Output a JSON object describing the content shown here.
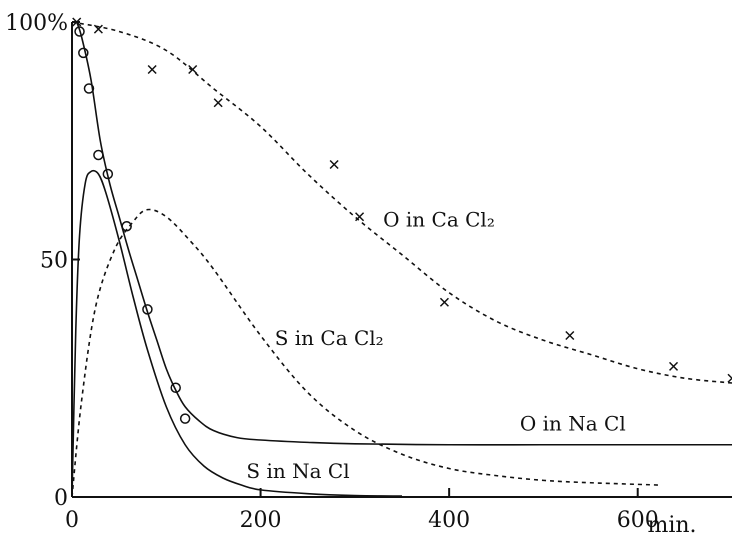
{
  "chart_data": {
    "type": "line",
    "x_unit_label": "min.",
    "y_max_label": "100%",
    "xlim": [
      0,
      700
    ],
    "ylim": [
      0,
      100
    ],
    "x_ticks": [
      0,
      200,
      400,
      600
    ],
    "x_tick_labels": [
      "0",
      "200",
      "400",
      "600"
    ],
    "y_ticks": [
      0,
      50,
      100
    ],
    "y_tick_labels": [
      "0",
      "50",
      "100%"
    ],
    "grid": false,
    "series": [
      {
        "name": "O in Ca Cl₂",
        "style": "dashed",
        "marker": "x",
        "curve": [
          [
            0,
            100
          ],
          [
            50,
            98
          ],
          [
            100,
            94
          ],
          [
            150,
            86
          ],
          [
            200,
            78
          ],
          [
            250,
            68
          ],
          [
            300,
            59
          ],
          [
            350,
            51
          ],
          [
            400,
            43
          ],
          [
            450,
            37
          ],
          [
            500,
            33
          ],
          [
            550,
            30
          ],
          [
            600,
            27
          ],
          [
            650,
            25
          ],
          [
            700,
            24
          ]
        ],
        "points": [
          [
            5,
            100
          ],
          [
            28,
            98.5
          ],
          [
            85,
            90
          ],
          [
            128,
            90
          ],
          [
            155,
            83
          ],
          [
            278,
            70
          ],
          [
            305,
            59
          ],
          [
            395,
            41
          ],
          [
            528,
            34
          ],
          [
            638,
            27.5
          ],
          [
            700,
            25
          ]
        ]
      },
      {
        "name": "S in Ca Cl₂",
        "style": "dashed",
        "marker": "none",
        "curve": [
          [
            0,
            0
          ],
          [
            10,
            20
          ],
          [
            25,
            40
          ],
          [
            45,
            52
          ],
          [
            65,
            58
          ],
          [
            80,
            60.5
          ],
          [
            100,
            59
          ],
          [
            125,
            54
          ],
          [
            150,
            48
          ],
          [
            200,
            34
          ],
          [
            250,
            22
          ],
          [
            300,
            14
          ],
          [
            350,
            9
          ],
          [
            400,
            6
          ],
          [
            450,
            4.5
          ],
          [
            500,
            3.5
          ],
          [
            550,
            3
          ],
          [
            625,
            2.5
          ]
        ]
      },
      {
        "name": "O in Na Cl",
        "style": "solid",
        "marker": "o",
        "curve": [
          [
            5,
            100
          ],
          [
            10,
            97
          ],
          [
            20,
            88
          ],
          [
            30,
            75
          ],
          [
            40,
            66
          ],
          [
            50,
            59
          ],
          [
            60,
            52
          ],
          [
            70,
            45.5
          ],
          [
            80,
            39
          ],
          [
            90,
            33
          ],
          [
            100,
            27
          ],
          [
            110,
            22.5
          ],
          [
            120,
            19
          ],
          [
            135,
            16
          ],
          [
            150,
            14
          ],
          [
            175,
            12.5
          ],
          [
            200,
            12
          ],
          [
            250,
            11.5
          ],
          [
            300,
            11.2
          ],
          [
            400,
            11
          ],
          [
            500,
            11
          ],
          [
            600,
            11
          ],
          [
            700,
            11
          ]
        ],
        "points": [
          [
            8,
            98
          ],
          [
            12,
            93.5
          ],
          [
            18,
            86
          ],
          [
            28,
            72
          ],
          [
            38,
            68
          ],
          [
            58,
            57
          ],
          [
            80,
            39.5
          ],
          [
            110,
            23
          ],
          [
            120,
            16.5
          ]
        ]
      },
      {
        "name": "S in Na Cl",
        "style": "solid",
        "marker": "none",
        "curve": [
          [
            0,
            0
          ],
          [
            4,
            35
          ],
          [
            8,
            55
          ],
          [
            14,
            66
          ],
          [
            20,
            68.5
          ],
          [
            28,
            68
          ],
          [
            36,
            64
          ],
          [
            50,
            54
          ],
          [
            65,
            42
          ],
          [
            80,
            31
          ],
          [
            100,
            19
          ],
          [
            120,
            11
          ],
          [
            140,
            6.5
          ],
          [
            160,
            4
          ],
          [
            180,
            2.5
          ],
          [
            200,
            1.5
          ],
          [
            250,
            0.7
          ],
          [
            300,
            0.3
          ],
          [
            350,
            0.2
          ]
        ]
      }
    ],
    "annotations": [
      {
        "text": "O in Ca Cl₂",
        "x": 330,
        "y": 57
      },
      {
        "text": "S in Ca Cl₂",
        "x": 215,
        "y": 32
      },
      {
        "text": "O in Na Cl",
        "x": 475,
        "y": 14
      },
      {
        "text": "S in Na Cl",
        "x": 185,
        "y": 4
      }
    ]
  }
}
